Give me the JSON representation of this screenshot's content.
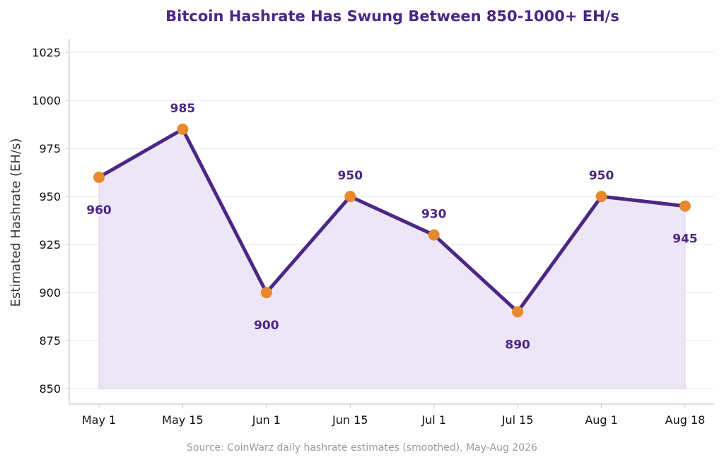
{
  "chart_data": {
    "type": "line",
    "title": "Bitcoin Hashrate Has Swung Between 850-1000+ EH/s",
    "xlabel": "",
    "ylabel": "Estimated Hashrate (EH/s)",
    "categories": [
      "May 1",
      "May 15",
      "Jun 1",
      "Jun 15",
      "Jul 1",
      "Jul 15",
      "Aug 1",
      "Aug 18"
    ],
    "series": [
      {
        "values": [
          960,
          985,
          900,
          950,
          930,
          890,
          950,
          945
        ]
      }
    ],
    "data_labels": [
      "960",
      "985",
      "900",
      "950",
      "930",
      "890",
      "950",
      "945"
    ],
    "yticks": [
      850,
      875,
      900,
      925,
      950,
      975,
      1000,
      1025
    ],
    "ylim": [
      842,
      1032
    ],
    "grid": true,
    "area_fill": true,
    "source": "Source: CoinWarz daily hashrate estimates (smoothed), May-Aug 2026",
    "colors": {
      "line": "#4b2885",
      "marker": "#e8892e",
      "fill": "#ede6f7",
      "title": "#4b2885",
      "data_label": "#4b2885",
      "grid": "#e8e8e8",
      "axis": "#cccccc"
    }
  }
}
